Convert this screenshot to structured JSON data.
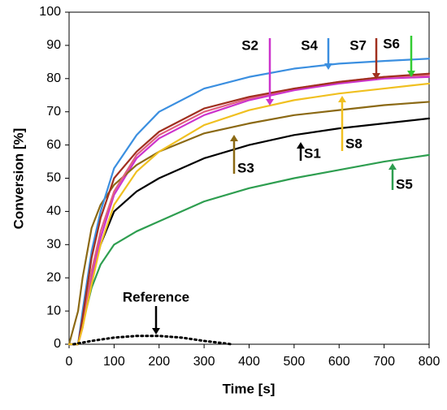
{
  "chart_data": {
    "type": "line",
    "x_label": "Time [s]",
    "y_label": "Conversion [%]",
    "x": [
      0,
      20,
      30,
      50,
      70,
      100,
      150,
      200,
      300,
      400,
      500,
      600,
      700,
      800
    ],
    "series": [
      {
        "name": "S1",
        "color": "#000000",
        "values": [
          0,
          0,
          7,
          20,
          30,
          40,
          46,
          50,
          56,
          60,
          63,
          65,
          66.5,
          68
        ]
      },
      {
        "name": "S2",
        "color": "#cc33cc",
        "values": [
          0,
          0,
          5,
          20,
          32,
          45,
          56,
          62,
          69,
          73.5,
          76.5,
          78.5,
          80,
          80.5
        ]
      },
      {
        "name": "S3",
        "color": "#8b6914",
        "values": [
          0,
          10,
          20,
          35,
          42,
          48,
          54,
          58,
          63.5,
          66.5,
          69,
          70.5,
          72,
          73
        ]
      },
      {
        "name": "S4",
        "color": "#3b8fe0",
        "values": [
          0,
          0,
          10,
          28,
          40,
          53,
          63,
          70,
          77,
          80.5,
          83,
          84.5,
          85.3,
          86
        ]
      },
      {
        "name": "S5",
        "color": "#2e9e50",
        "values": [
          0,
          0,
          6,
          17,
          24,
          30,
          34,
          37,
          43,
          47,
          50,
          52.5,
          55,
          57
        ]
      },
      {
        "name": "S6",
        "color": "#e06080",
        "values": [
          0,
          0,
          6,
          22,
          34,
          46,
          57,
          63,
          70,
          74,
          77,
          79,
          80.5,
          81
        ]
      },
      {
        "name": "S7",
        "color": "#a0301f",
        "values": [
          0,
          0,
          8,
          26,
          38,
          50,
          58,
          64,
          71,
          74.5,
          77,
          79,
          80.5,
          81.5
        ]
      },
      {
        "name": "S8",
        "color": "#f0c020",
        "values": [
          0,
          0,
          5,
          18,
          30,
          42,
          52,
          58,
          66,
          70.5,
          73.5,
          75.5,
          77,
          78.5
        ]
      },
      {
        "name": "Reference",
        "color": "#000000",
        "dotted": true,
        "x": [
          10,
          50,
          100,
          150,
          200,
          250,
          300,
          350,
          360
        ],
        "values": [
          0,
          1,
          2,
          2.5,
          2.5,
          2,
          1,
          0.2,
          0
        ]
      }
    ],
    "annotations": [
      "S2",
      "S4",
      "S7",
      "S6",
      "S8",
      "S3",
      "S1",
      "S5",
      "Reference"
    ],
    "xlim": [
      0,
      800
    ],
    "xticks": [
      0,
      100,
      200,
      300,
      400,
      500,
      600,
      700,
      800
    ],
    "ylim": [
      0,
      100
    ],
    "yticks": [
      0,
      10,
      20,
      30,
      40,
      50,
      60,
      70,
      80,
      90,
      100
    ],
    "grid": false
  }
}
